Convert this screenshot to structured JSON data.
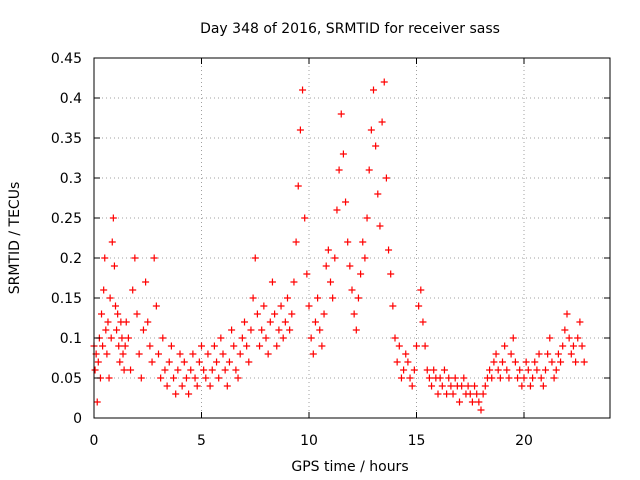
{
  "chart_data": {
    "type": "scatter",
    "title": "Day 348 of 2016, SRMTID for receiver sass",
    "xlabel": "GPS time / hours",
    "ylabel": "SRMTID / TECUs",
    "xlim": [
      0,
      24
    ],
    "ylim": [
      0,
      0.45
    ],
    "xticks": [
      0,
      5,
      10,
      15,
      20
    ],
    "yticks": [
      0,
      0.05,
      0.1,
      0.15,
      0.2,
      0.25,
      0.3,
      0.35,
      0.4,
      0.45
    ],
    "grid": true,
    "marker": "+",
    "color": "#ff0000",
    "series": [
      {
        "name": "SRMTID",
        "points": [
          [
            0.0,
            0.09
          ],
          [
            0.05,
            0.06
          ],
          [
            0.1,
            0.08
          ],
          [
            0.15,
            0.02
          ],
          [
            0.2,
            0.07
          ],
          [
            0.25,
            0.1
          ],
          [
            0.3,
            0.05
          ],
          [
            0.35,
            0.13
          ],
          [
            0.4,
            0.09
          ],
          [
            0.45,
            0.16
          ],
          [
            0.5,
            0.2
          ],
          [
            0.55,
            0.11
          ],
          [
            0.6,
            0.08
          ],
          [
            0.65,
            0.12
          ],
          [
            0.7,
            0.05
          ],
          [
            0.75,
            0.15
          ],
          [
            0.8,
            0.1
          ],
          [
            0.85,
            0.22
          ],
          [
            0.9,
            0.25
          ],
          [
            0.95,
            0.19
          ],
          [
            1.0,
            0.14
          ],
          [
            1.05,
            0.11
          ],
          [
            1.1,
            0.13
          ],
          [
            1.15,
            0.09
          ],
          [
            1.2,
            0.07
          ],
          [
            1.25,
            0.12
          ],
          [
            1.3,
            0.1
          ],
          [
            1.35,
            0.08
          ],
          [
            1.4,
            0.06
          ],
          [
            1.45,
            0.09
          ],
          [
            1.5,
            0.12
          ],
          [
            1.6,
            0.1
          ],
          [
            1.7,
            0.06
          ],
          [
            1.8,
            0.16
          ],
          [
            1.9,
            0.2
          ],
          [
            2.0,
            0.13
          ],
          [
            2.1,
            0.08
          ],
          [
            2.2,
            0.05
          ],
          [
            2.3,
            0.11
          ],
          [
            2.4,
            0.17
          ],
          [
            2.5,
            0.12
          ],
          [
            2.6,
            0.09
          ],
          [
            2.7,
            0.07
          ],
          [
            2.8,
            0.2
          ],
          [
            2.9,
            0.14
          ],
          [
            3.0,
            0.08
          ],
          [
            3.1,
            0.05
          ],
          [
            3.2,
            0.1
          ],
          [
            3.3,
            0.06
          ],
          [
            3.4,
            0.04
          ],
          [
            3.5,
            0.07
          ],
          [
            3.6,
            0.09
          ],
          [
            3.7,
            0.05
          ],
          [
            3.8,
            0.03
          ],
          [
            3.9,
            0.06
          ],
          [
            4.0,
            0.08
          ],
          [
            4.1,
            0.04
          ],
          [
            4.2,
            0.07
          ],
          [
            4.3,
            0.05
          ],
          [
            4.4,
            0.03
          ],
          [
            4.5,
            0.06
          ],
          [
            4.6,
            0.08
          ],
          [
            4.7,
            0.05
          ],
          [
            4.8,
            0.04
          ],
          [
            4.9,
            0.07
          ],
          [
            5.0,
            0.09
          ],
          [
            5.1,
            0.06
          ],
          [
            5.2,
            0.05
          ],
          [
            5.3,
            0.08
          ],
          [
            5.4,
            0.04
          ],
          [
            5.5,
            0.06
          ],
          [
            5.6,
            0.09
          ],
          [
            5.7,
            0.07
          ],
          [
            5.8,
            0.05
          ],
          [
            5.9,
            0.1
          ],
          [
            6.0,
            0.08
          ],
          [
            6.1,
            0.06
          ],
          [
            6.2,
            0.04
          ],
          [
            6.3,
            0.07
          ],
          [
            6.4,
            0.11
          ],
          [
            6.5,
            0.09
          ],
          [
            6.6,
            0.06
          ],
          [
            6.7,
            0.05
          ],
          [
            6.8,
            0.08
          ],
          [
            6.9,
            0.1
          ],
          [
            7.0,
            0.12
          ],
          [
            7.1,
            0.09
          ],
          [
            7.2,
            0.07
          ],
          [
            7.3,
            0.11
          ],
          [
            7.4,
            0.15
          ],
          [
            7.5,
            0.2
          ],
          [
            7.6,
            0.13
          ],
          [
            7.7,
            0.09
          ],
          [
            7.8,
            0.11
          ],
          [
            7.9,
            0.14
          ],
          [
            8.0,
            0.1
          ],
          [
            8.1,
            0.08
          ],
          [
            8.2,
            0.12
          ],
          [
            8.3,
            0.17
          ],
          [
            8.4,
            0.13
          ],
          [
            8.5,
            0.09
          ],
          [
            8.6,
            0.11
          ],
          [
            8.7,
            0.14
          ],
          [
            8.8,
            0.1
          ],
          [
            8.9,
            0.12
          ],
          [
            9.0,
            0.15
          ],
          [
            9.1,
            0.11
          ],
          [
            9.2,
            0.13
          ],
          [
            9.3,
            0.17
          ],
          [
            9.4,
            0.22
          ],
          [
            9.5,
            0.29
          ],
          [
            9.6,
            0.36
          ],
          [
            9.7,
            0.41
          ],
          [
            9.8,
            0.25
          ],
          [
            9.9,
            0.18
          ],
          [
            10.0,
            0.14
          ],
          [
            10.1,
            0.1
          ],
          [
            10.2,
            0.08
          ],
          [
            10.3,
            0.12
          ],
          [
            10.4,
            0.15
          ],
          [
            10.5,
            0.11
          ],
          [
            10.6,
            0.09
          ],
          [
            10.7,
            0.13
          ],
          [
            10.8,
            0.19
          ],
          [
            10.9,
            0.21
          ],
          [
            11.0,
            0.17
          ],
          [
            11.1,
            0.15
          ],
          [
            11.2,
            0.2
          ],
          [
            11.3,
            0.26
          ],
          [
            11.4,
            0.31
          ],
          [
            11.5,
            0.38
          ],
          [
            11.6,
            0.33
          ],
          [
            11.7,
            0.27
          ],
          [
            11.8,
            0.22
          ],
          [
            11.9,
            0.19
          ],
          [
            12.0,
            0.16
          ],
          [
            12.1,
            0.13
          ],
          [
            12.2,
            0.11
          ],
          [
            12.3,
            0.15
          ],
          [
            12.4,
            0.18
          ],
          [
            12.5,
            0.22
          ],
          [
            12.6,
            0.2
          ],
          [
            12.7,
            0.25
          ],
          [
            12.8,
            0.31
          ],
          [
            12.9,
            0.36
          ],
          [
            13.0,
            0.41
          ],
          [
            13.1,
            0.34
          ],
          [
            13.2,
            0.28
          ],
          [
            13.3,
            0.24
          ],
          [
            13.4,
            0.37
          ],
          [
            13.5,
            0.42
          ],
          [
            13.6,
            0.3
          ],
          [
            13.7,
            0.21
          ],
          [
            13.8,
            0.18
          ],
          [
            13.9,
            0.14
          ],
          [
            14.0,
            0.1
          ],
          [
            14.1,
            0.07
          ],
          [
            14.2,
            0.09
          ],
          [
            14.3,
            0.05
          ],
          [
            14.4,
            0.06
          ],
          [
            14.5,
            0.08
          ],
          [
            14.6,
            0.07
          ],
          [
            14.7,
            0.05
          ],
          [
            14.8,
            0.04
          ],
          [
            14.9,
            0.06
          ],
          [
            15.0,
            0.09
          ],
          [
            15.1,
            0.14
          ],
          [
            15.2,
            0.16
          ],
          [
            15.3,
            0.12
          ],
          [
            15.4,
            0.09
          ],
          [
            15.5,
            0.06
          ],
          [
            15.6,
            0.05
          ],
          [
            15.7,
            0.04
          ],
          [
            15.8,
            0.06
          ],
          [
            15.9,
            0.05
          ],
          [
            16.0,
            0.03
          ],
          [
            16.1,
            0.05
          ],
          [
            16.2,
            0.04
          ],
          [
            16.3,
            0.06
          ],
          [
            16.4,
            0.03
          ],
          [
            16.5,
            0.05
          ],
          [
            16.6,
            0.04
          ],
          [
            16.7,
            0.03
          ],
          [
            16.8,
            0.05
          ],
          [
            16.9,
            0.04
          ],
          [
            17.0,
            0.02
          ],
          [
            17.1,
            0.04
          ],
          [
            17.2,
            0.05
          ],
          [
            17.3,
            0.03
          ],
          [
            17.4,
            0.04
          ],
          [
            17.5,
            0.03
          ],
          [
            17.6,
            0.02
          ],
          [
            17.7,
            0.04
          ],
          [
            17.8,
            0.03
          ],
          [
            17.9,
            0.02
          ],
          [
            18.0,
            0.01
          ],
          [
            18.1,
            0.03
          ],
          [
            18.2,
            0.04
          ],
          [
            18.3,
            0.05
          ],
          [
            18.4,
            0.06
          ],
          [
            18.5,
            0.05
          ],
          [
            18.6,
            0.07
          ],
          [
            18.7,
            0.08
          ],
          [
            18.8,
            0.06
          ],
          [
            18.9,
            0.05
          ],
          [
            19.0,
            0.07
          ],
          [
            19.1,
            0.09
          ],
          [
            19.2,
            0.06
          ],
          [
            19.3,
            0.05
          ],
          [
            19.4,
            0.08
          ],
          [
            19.5,
            0.1
          ],
          [
            19.6,
            0.07
          ],
          [
            19.7,
            0.05
          ],
          [
            19.8,
            0.06
          ],
          [
            19.9,
            0.04
          ],
          [
            20.0,
            0.05
          ],
          [
            20.1,
            0.07
          ],
          [
            20.2,
            0.06
          ],
          [
            20.3,
            0.04
          ],
          [
            20.4,
            0.05
          ],
          [
            20.5,
            0.07
          ],
          [
            20.6,
            0.06
          ],
          [
            20.7,
            0.08
          ],
          [
            20.8,
            0.05
          ],
          [
            20.9,
            0.04
          ],
          [
            21.0,
            0.06
          ],
          [
            21.1,
            0.08
          ],
          [
            21.2,
            0.1
          ],
          [
            21.3,
            0.07
          ],
          [
            21.4,
            0.05
          ],
          [
            21.5,
            0.06
          ],
          [
            21.6,
            0.08
          ],
          [
            21.7,
            0.07
          ],
          [
            21.8,
            0.09
          ],
          [
            21.9,
            0.11
          ],
          [
            22.0,
            0.13
          ],
          [
            22.1,
            0.1
          ],
          [
            22.2,
            0.08
          ],
          [
            22.3,
            0.09
          ],
          [
            22.4,
            0.07
          ],
          [
            22.5,
            0.1
          ],
          [
            22.6,
            0.12
          ],
          [
            22.7,
            0.09
          ],
          [
            22.8,
            0.07
          ]
        ]
      }
    ]
  }
}
